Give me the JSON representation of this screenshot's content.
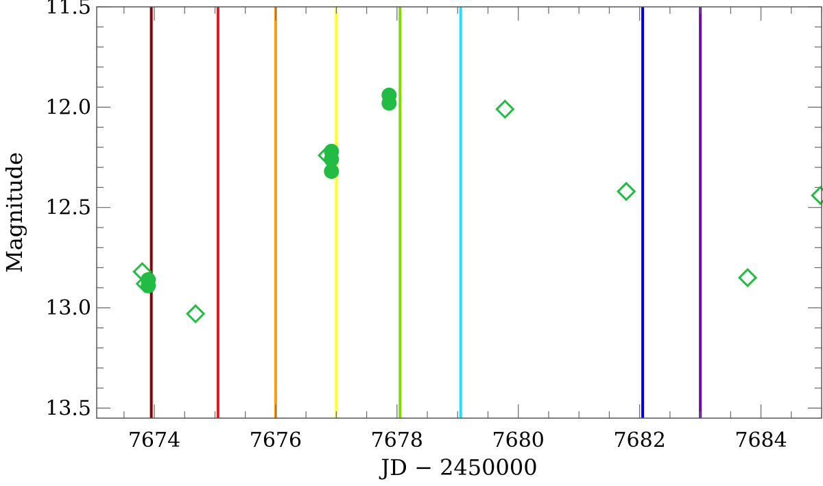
{
  "chart_data": {
    "type": "scatter",
    "title": "",
    "xlabel": "JD − 2450000",
    "ylabel": "Magnitude",
    "xlim": [
      7673.05,
      7685.0
    ],
    "ylim": [
      13.55,
      11.5
    ],
    "y_inverted": true,
    "x_ticks": [
      7674,
      7676,
      7678,
      7680,
      7682,
      7684
    ],
    "x_tick_labels": [
      "7674",
      "7676",
      "7678",
      "7680",
      "7682",
      "7684"
    ],
    "y_ticks": [
      11.5,
      12.0,
      12.5,
      13.0,
      13.5
    ],
    "y_tick_labels": [
      "11.5",
      "12.0",
      "12.5",
      "13.0",
      "13.5"
    ],
    "x_minor_step": 0.5,
    "y_minor_step": 0.1,
    "grid": false,
    "legend": "none",
    "vertical_lines": [
      {
        "x": 7673.95,
        "color": "#8b0000"
      },
      {
        "x": 7675.05,
        "color": "#e8161b"
      },
      {
        "x": 7676.0,
        "color": "#ff9a14"
      },
      {
        "x": 7677.0,
        "color": "#ffff22"
      },
      {
        "x": 7678.05,
        "color": "#7ddd00"
      },
      {
        "x": 7679.05,
        "color": "#22ddff"
      },
      {
        "x": 7682.05,
        "color": "#0000d8"
      },
      {
        "x": 7683.0,
        "color": "#6a0dad"
      }
    ],
    "series": [
      {
        "marker": "diamond-open",
        "color": "#22bb44",
        "points": [
          {
            "x": 7673.8,
            "y": 12.82
          },
          {
            "x": 7673.85,
            "y": 12.88
          },
          {
            "x": 7674.68,
            "y": 13.03
          },
          {
            "x": 7676.85,
            "y": 12.24
          },
          {
            "x": 7679.78,
            "y": 12.01
          },
          {
            "x": 7681.78,
            "y": 12.42
          },
          {
            "x": 7683.78,
            "y": 12.85
          },
          {
            "x": 7684.98,
            "y": 12.44
          }
        ]
      },
      {
        "marker": "circle-filled",
        "color": "#22bb44",
        "points": [
          {
            "x": 7673.9,
            "y": 12.86
          },
          {
            "x": 7673.9,
            "y": 12.89
          },
          {
            "x": 7676.92,
            "y": 12.22
          },
          {
            "x": 7676.92,
            "y": 12.26
          },
          {
            "x": 7676.92,
            "y": 12.32
          },
          {
            "x": 7677.87,
            "y": 11.94
          },
          {
            "x": 7677.87,
            "y": 11.98
          }
        ]
      }
    ]
  }
}
